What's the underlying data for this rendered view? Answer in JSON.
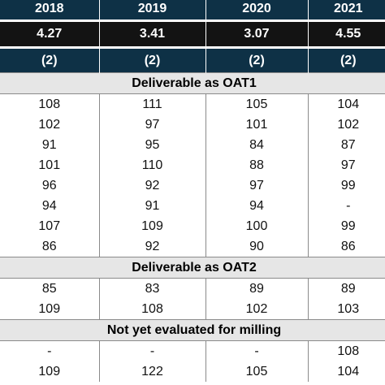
{
  "header": {
    "years": [
      "2018",
      "2019",
      "2020",
      "2021"
    ],
    "values": [
      "4.27",
      "3.41",
      "3.07",
      "4.55"
    ],
    "notes": [
      "(2)",
      "(2)",
      "(2)",
      "(2)"
    ]
  },
  "sections": [
    {
      "title": "Deliverable as OAT1",
      "rows": [
        [
          "108",
          "111",
          "105",
          "104"
        ],
        [
          "102",
          "97",
          "101",
          "102"
        ],
        [
          "91",
          "95",
          "84",
          "87"
        ],
        [
          "101",
          "110",
          "88",
          "97"
        ],
        [
          "96",
          "92",
          "97",
          "99"
        ],
        [
          "94",
          "91",
          "94",
          "-"
        ],
        [
          "107",
          "109",
          "100",
          "99"
        ],
        [
          "86",
          "92",
          "90",
          "86"
        ]
      ]
    },
    {
      "title": "Deliverable as OAT2",
      "rows": [
        [
          "85",
          "83",
          "89",
          "89"
        ],
        [
          "109",
          "108",
          "102",
          "103"
        ]
      ]
    },
    {
      "title": "Not yet evaluated for milling",
      "rows": [
        [
          "-",
          "-",
          "-",
          "108"
        ],
        [
          "109",
          "122",
          "105",
          "104"
        ]
      ]
    }
  ]
}
